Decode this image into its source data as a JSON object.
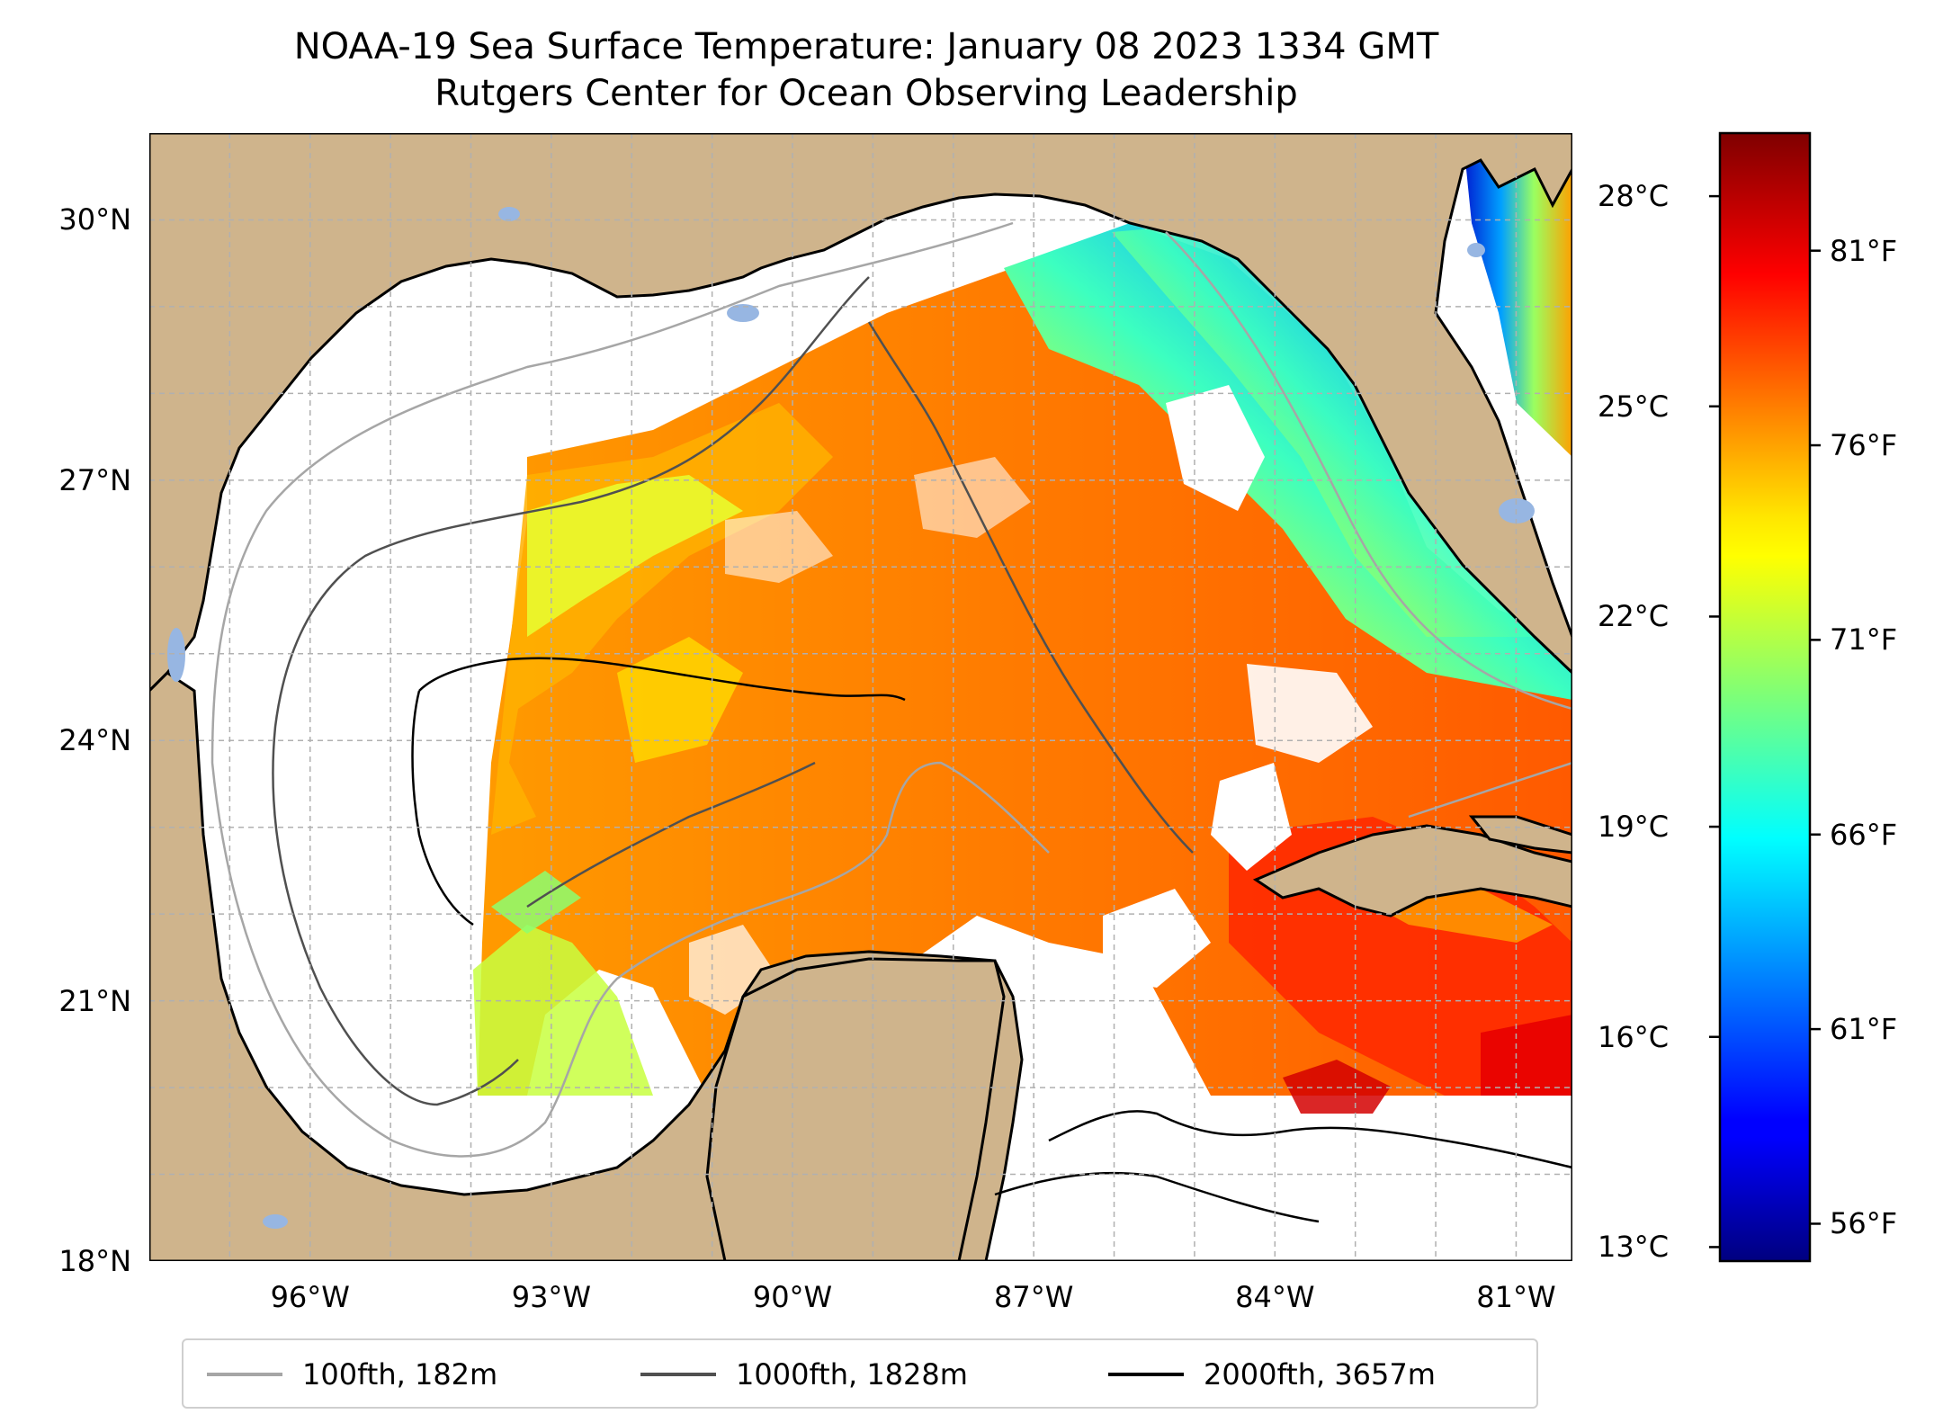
{
  "title": {
    "line1": "NOAA-19 Sea Surface Temperature: January 08 2023 1334 GMT",
    "line2": "Rutgers Center for Ocean Observing Leadership"
  },
  "map": {
    "lon_range": [
      -98,
      -80.3
    ],
    "lat_range": [
      18,
      31
    ],
    "lat_ticks": [
      {
        "value": 18,
        "label": "18°N"
      },
      {
        "value": 21,
        "label": "21°N"
      },
      {
        "value": 24,
        "label": "24°N"
      },
      {
        "value": 27,
        "label": "27°N"
      },
      {
        "value": 30,
        "label": "30°N"
      }
    ],
    "lon_ticks": [
      {
        "value": -96,
        "label": "96°W"
      },
      {
        "value": -93,
        "label": "93°W"
      },
      {
        "value": -90,
        "label": "90°W"
      },
      {
        "value": -87,
        "label": "87°W"
      },
      {
        "value": -84,
        "label": "84°W"
      },
      {
        "value": -81,
        "label": "81°W"
      }
    ],
    "gridlines": true,
    "colors": {
      "land": "#cfb48c",
      "ocean_no_data": "#ffffff",
      "lakes": "#97b6e2",
      "grid": "#b0b0b0",
      "coast": "#000000"
    }
  },
  "colorbar": {
    "colormap": "jet",
    "range_c": [
      12.8,
      28.9
    ],
    "celsius_ticks": [
      {
        "value": 13,
        "label": "13°C"
      },
      {
        "value": 16,
        "label": "16°C"
      },
      {
        "value": 19,
        "label": "19°C"
      },
      {
        "value": 22,
        "label": "22°C"
      },
      {
        "value": 25,
        "label": "25°C"
      },
      {
        "value": 28,
        "label": "28°C"
      }
    ],
    "fahrenheit_ticks": [
      {
        "value": 56,
        "label": "56°F"
      },
      {
        "value": 61,
        "label": "61°F"
      },
      {
        "value": 66,
        "label": "66°F"
      },
      {
        "value": 71,
        "label": "71°F"
      },
      {
        "value": 76,
        "label": "76°F"
      },
      {
        "value": 81,
        "label": "81°F"
      }
    ]
  },
  "legend": {
    "items": [
      {
        "label": "100fth, 182m",
        "color": "#a6a6a6"
      },
      {
        "label": "1000fth, 1828m",
        "color": "#505050"
      },
      {
        "label": "2000fth, 3657m",
        "color": "#000000"
      }
    ]
  }
}
